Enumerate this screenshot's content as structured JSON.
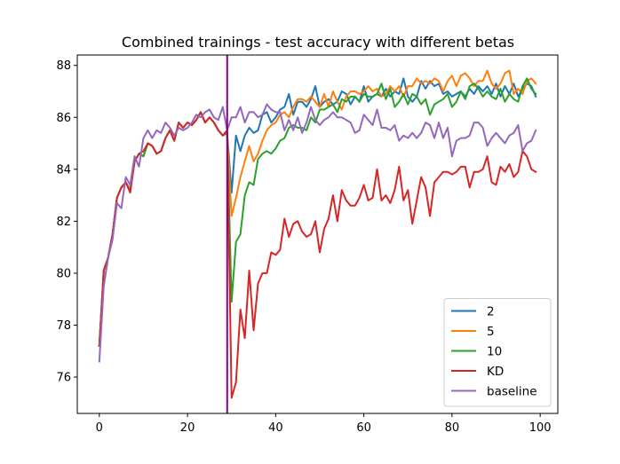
{
  "chart_data": {
    "type": "line",
    "title": "Combined trainings - test accuracy with different betas",
    "xlabel": "",
    "ylabel": "",
    "xlim": [
      -5,
      104
    ],
    "ylim": [
      74.6,
      88.4
    ],
    "xticks": [
      0,
      20,
      40,
      60,
      80,
      100
    ],
    "yticks": [
      76,
      78,
      80,
      82,
      84,
      86,
      88
    ],
    "grid": false,
    "legend_position": "lower-right",
    "vline": {
      "x": 29,
      "color": "#800080"
    },
    "series": [
      {
        "name": "2",
        "color": "#1f77b4",
        "x": [
          0,
          1,
          2,
          3,
          4,
          5,
          6,
          7,
          8,
          9,
          10,
          11,
          12,
          13,
          14,
          15,
          16,
          17,
          18,
          19,
          20,
          21,
          22,
          23,
          24,
          25,
          26,
          27,
          28,
          29,
          30,
          31,
          32,
          33,
          34,
          35,
          36,
          37,
          38,
          39,
          40,
          41,
          42,
          43,
          44,
          45,
          46,
          47,
          48,
          49,
          50,
          51,
          52,
          53,
          54,
          55,
          56,
          57,
          58,
          59,
          60,
          61,
          62,
          63,
          64,
          65,
          66,
          67,
          68,
          69,
          70,
          71,
          72,
          73,
          74,
          75,
          76,
          77,
          78,
          79,
          80,
          81,
          82,
          83,
          84,
          85,
          86,
          87,
          88,
          89,
          90,
          91,
          92,
          93,
          94,
          95,
          96,
          97,
          98,
          99
        ],
        "values": [
          77.2,
          80.1,
          80.6,
          81.5,
          82.9,
          83.3,
          83.5,
          83.2,
          84.3,
          84.6,
          84.5,
          85.0,
          84.9,
          84.6,
          84.7,
          85.2,
          85.5,
          85.1,
          85.8,
          85.6,
          85.8,
          85.7,
          85.9,
          86.2,
          85.8,
          86.0,
          85.8,
          85.5,
          85.3,
          85.4,
          83.1,
          85.3,
          84.7,
          85.3,
          85.6,
          85.4,
          85.5,
          86.1,
          86.2,
          85.8,
          86.0,
          86.3,
          86.4,
          86.9,
          86.1,
          86.6,
          86.6,
          86.4,
          86.7,
          87.2,
          86.4,
          86.6,
          86.7,
          86.5,
          86.6,
          87.0,
          86.9,
          86.5,
          86.8,
          86.6,
          87.2,
          86.6,
          86.8,
          86.9,
          86.8,
          87.1,
          86.8,
          87.0,
          86.9,
          87.5,
          86.8,
          86.6,
          86.8,
          87.4,
          87.1,
          87.4,
          87.2,
          87.3,
          86.9,
          87.0,
          86.8,
          86.9,
          87.0,
          86.8,
          87.1,
          86.9,
          87.2,
          87.0,
          87.2,
          86.9,
          87.3,
          86.8,
          87.2,
          86.9,
          87.3,
          86.8,
          87.1,
          87.3,
          87.2,
          86.8
        ]
      },
      {
        "name": "5",
        "color": "#ff7f0e",
        "x": [
          0,
          1,
          2,
          3,
          4,
          5,
          6,
          7,
          8,
          9,
          10,
          11,
          12,
          13,
          14,
          15,
          16,
          17,
          18,
          19,
          20,
          21,
          22,
          23,
          24,
          25,
          26,
          27,
          28,
          29,
          30,
          31,
          32,
          33,
          34,
          35,
          36,
          37,
          38,
          39,
          40,
          41,
          42,
          43,
          44,
          45,
          46,
          47,
          48,
          49,
          50,
          51,
          52,
          53,
          54,
          55,
          56,
          57,
          58,
          59,
          60,
          61,
          62,
          63,
          64,
          65,
          66,
          67,
          68,
          69,
          70,
          71,
          72,
          73,
          74,
          75,
          76,
          77,
          78,
          79,
          80,
          81,
          82,
          83,
          84,
          85,
          86,
          87,
          88,
          89,
          90,
          91,
          92,
          93,
          94,
          95,
          96,
          97,
          98,
          99
        ],
        "values": [
          77.2,
          80.1,
          80.6,
          81.5,
          82.9,
          83.3,
          83.5,
          83.2,
          84.3,
          84.6,
          84.5,
          85.0,
          84.9,
          84.6,
          84.7,
          85.2,
          85.5,
          85.1,
          85.8,
          85.6,
          85.8,
          85.7,
          85.9,
          86.2,
          85.8,
          86.0,
          85.8,
          85.5,
          85.3,
          85.4,
          82.2,
          82.9,
          83.7,
          84.3,
          84.9,
          84.3,
          84.6,
          85.1,
          85.5,
          85.7,
          85.8,
          86.1,
          86.2,
          86.0,
          86.4,
          86.7,
          86.7,
          86.6,
          86.8,
          86.6,
          86.4,
          86.9,
          86.4,
          87.0,
          86.6,
          86.3,
          86.8,
          87.0,
          87.0,
          86.9,
          87.0,
          87.2,
          87.0,
          87.1,
          86.8,
          86.9,
          87.2,
          87.0,
          87.2,
          86.8,
          87.2,
          87.2,
          87.5,
          87.3,
          87.4,
          87.3,
          87.5,
          87.4,
          87.0,
          87.4,
          87.6,
          87.2,
          87.6,
          87.7,
          87.5,
          87.2,
          87.4,
          87.4,
          87.8,
          87.3,
          87.1,
          87.3,
          87.7,
          87.8,
          86.9,
          87.1,
          86.9,
          87.4,
          87.5,
          87.3
        ]
      },
      {
        "name": "10",
        "color": "#2ca02c",
        "x": [
          0,
          1,
          2,
          3,
          4,
          5,
          6,
          7,
          8,
          9,
          10,
          11,
          12,
          13,
          14,
          15,
          16,
          17,
          18,
          19,
          20,
          21,
          22,
          23,
          24,
          25,
          26,
          27,
          28,
          29,
          30,
          31,
          32,
          33,
          34,
          35,
          36,
          37,
          38,
          39,
          40,
          41,
          42,
          43,
          44,
          45,
          46,
          47,
          48,
          49,
          50,
          51,
          52,
          53,
          54,
          55,
          56,
          57,
          58,
          59,
          60,
          61,
          62,
          63,
          64,
          65,
          66,
          67,
          68,
          69,
          70,
          71,
          72,
          73,
          74,
          75,
          76,
          77,
          78,
          79,
          80,
          81,
          82,
          83,
          84,
          85,
          86,
          87,
          88,
          89,
          90,
          91,
          92,
          93,
          94,
          95,
          96,
          97,
          98,
          99
        ],
        "values": [
          77.2,
          80.1,
          80.6,
          81.5,
          82.9,
          83.3,
          83.5,
          83.2,
          84.3,
          84.6,
          84.5,
          85.0,
          84.9,
          84.6,
          84.7,
          85.2,
          85.5,
          85.1,
          85.8,
          85.6,
          85.8,
          85.7,
          85.9,
          86.2,
          85.8,
          86.0,
          85.8,
          85.5,
          85.3,
          85.4,
          78.9,
          81.2,
          81.5,
          83.0,
          83.5,
          83.4,
          84.4,
          84.6,
          84.7,
          84.6,
          84.8,
          85.1,
          85.2,
          85.6,
          85.7,
          85.6,
          85.6,
          85.5,
          86.0,
          85.8,
          86.3,
          86.3,
          86.4,
          86.5,
          86.2,
          86.7,
          86.6,
          86.8,
          86.8,
          86.6,
          86.9,
          86.8,
          86.8,
          86.9,
          87.3,
          86.7,
          87.1,
          86.4,
          86.6,
          86.9,
          86.5,
          86.9,
          86.8,
          86.5,
          86.7,
          86.1,
          86.5,
          86.6,
          86.7,
          86.9,
          86.4,
          86.6,
          87.0,
          86.7,
          87.2,
          87.3,
          87.1,
          86.8,
          87.0,
          86.8,
          86.7,
          87.1,
          86.6,
          86.9,
          86.7,
          86.6,
          87.2,
          87.5,
          87.1,
          86.9
        ]
      },
      {
        "name": "KD",
        "color": "#d62728",
        "x": [
          0,
          1,
          2,
          3,
          4,
          5,
          6,
          7,
          8,
          9,
          10,
          11,
          12,
          13,
          14,
          15,
          16,
          17,
          18,
          19,
          20,
          21,
          22,
          23,
          24,
          25,
          26,
          27,
          28,
          29,
          30,
          31,
          32,
          33,
          34,
          35,
          36,
          37,
          38,
          39,
          40,
          41,
          42,
          43,
          44,
          45,
          46,
          47,
          48,
          49,
          50,
          51,
          52,
          53,
          54,
          55,
          56,
          57,
          58,
          59,
          60,
          61,
          62,
          63,
          64,
          65,
          66,
          67,
          68,
          69,
          70,
          71,
          72,
          73,
          74,
          75,
          76,
          77,
          78,
          79,
          80,
          81,
          82,
          83,
          84,
          85,
          86,
          87,
          88,
          89,
          90,
          91,
          92,
          93,
          94,
          95,
          96,
          97,
          98,
          99
        ],
        "values": [
          77.2,
          80.1,
          80.6,
          81.5,
          82.9,
          83.3,
          83.5,
          83.1,
          84.3,
          84.6,
          84.7,
          85.0,
          84.9,
          84.6,
          84.7,
          85.2,
          85.5,
          85.1,
          85.8,
          85.6,
          85.8,
          85.7,
          85.9,
          86.2,
          85.8,
          86.0,
          85.8,
          85.5,
          85.3,
          85.5,
          75.2,
          75.8,
          78.6,
          77.5,
          80.1,
          77.8,
          79.6,
          80.0,
          80.0,
          80.8,
          80.7,
          80.9,
          82.1,
          81.4,
          81.9,
          82.0,
          81.6,
          81.4,
          81.5,
          82.0,
          80.8,
          81.7,
          82.1,
          83.0,
          82.0,
          83.2,
          82.8,
          82.6,
          82.6,
          82.9,
          83.4,
          82.8,
          82.9,
          84.0,
          82.8,
          83.0,
          82.7,
          83.2,
          84.1,
          82.8,
          83.2,
          81.9,
          82.8,
          83.7,
          83.3,
          82.2,
          83.5,
          83.7,
          83.9,
          83.9,
          83.8,
          83.9,
          84.1,
          84.1,
          83.3,
          83.9,
          83.9,
          84.0,
          84.5,
          83.5,
          83.4,
          84.1,
          83.9,
          84.2,
          83.7,
          83.9,
          84.7,
          84.5,
          84.0,
          83.9
        ]
      },
      {
        "name": "baseline",
        "color": "#9467bd",
        "x": [
          0,
          1,
          2,
          3,
          4,
          5,
          6,
          7,
          8,
          9,
          10,
          11,
          12,
          13,
          14,
          15,
          16,
          17,
          18,
          19,
          20,
          21,
          22,
          23,
          24,
          25,
          26,
          27,
          28,
          29,
          30,
          31,
          32,
          33,
          34,
          35,
          36,
          37,
          38,
          39,
          40,
          41,
          42,
          43,
          44,
          45,
          46,
          47,
          48,
          49,
          50,
          51,
          52,
          53,
          54,
          55,
          56,
          57,
          58,
          59,
          60,
          61,
          62,
          63,
          64,
          65,
          66,
          67,
          68,
          69,
          70,
          71,
          72,
          73,
          74,
          75,
          76,
          77,
          78,
          79,
          80,
          81,
          82,
          83,
          84,
          85,
          86,
          87,
          88,
          89,
          90,
          91,
          92,
          93,
          94,
          95,
          96,
          97,
          98,
          99
        ],
        "values": [
          76.6,
          79.5,
          80.6,
          81.3,
          82.7,
          82.5,
          83.7,
          83.4,
          84.5,
          84.1,
          85.2,
          85.5,
          85.2,
          85.5,
          85.4,
          85.8,
          85.6,
          85.3,
          85.6,
          85.5,
          85.6,
          85.8,
          86.1,
          86.0,
          86.2,
          86.3,
          86.0,
          85.9,
          86.4,
          85.5,
          86.0,
          86.0,
          86.4,
          85.8,
          86.2,
          86.2,
          86.0,
          86.1,
          86.5,
          86.3,
          86.2,
          86.2,
          85.5,
          85.9,
          85.5,
          86.0,
          85.4,
          85.8,
          86.4,
          85.9,
          85.7,
          85.9,
          86.0,
          86.2,
          86.0,
          86.0,
          85.9,
          85.8,
          85.4,
          85.5,
          86.1,
          85.9,
          85.7,
          86.3,
          85.6,
          85.6,
          85.5,
          85.7,
          85.1,
          85.3,
          85.2,
          85.4,
          85.2,
          85.4,
          85.8,
          85.7,
          85.2,
          85.8,
          85.2,
          85.6,
          84.5,
          85.1,
          85.2,
          85.2,
          85.3,
          85.8,
          85.8,
          85.6,
          84.9,
          85.2,
          85.4,
          85.2,
          85.0,
          85.3,
          85.4,
          85.7,
          84.7,
          85.0,
          85.1,
          85.5
        ]
      }
    ]
  }
}
